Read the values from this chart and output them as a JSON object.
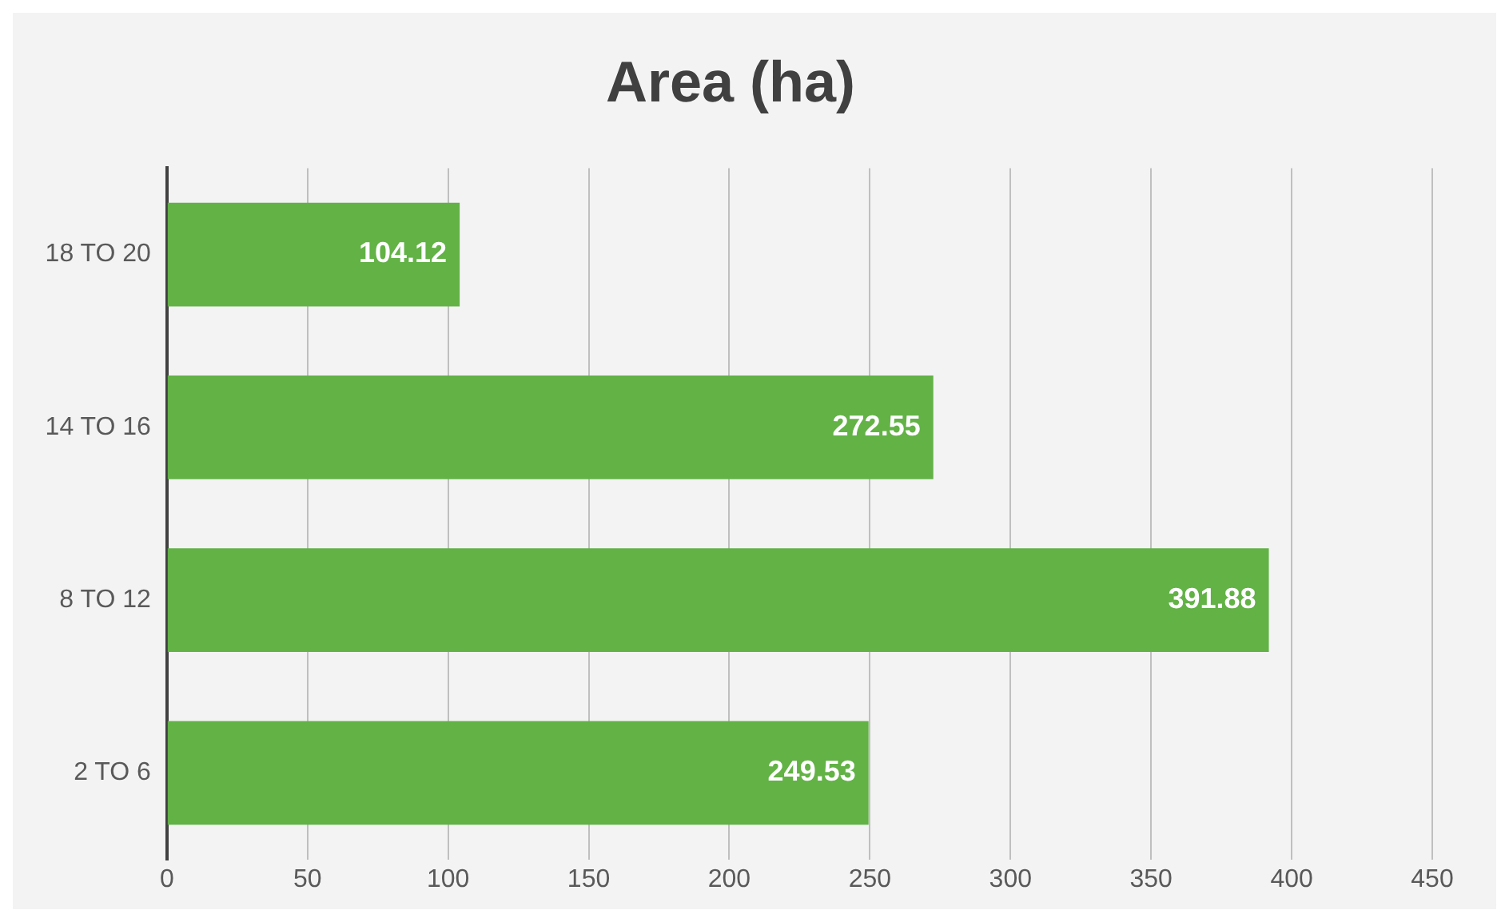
{
  "chart_data": {
    "type": "bar",
    "orientation": "horizontal",
    "title": "Area (ha)",
    "categories": [
      "18 TO 20",
      "14 TO 16",
      "8 TO 12",
      "2 TO 6"
    ],
    "values": [
      104.12,
      272.55,
      391.88,
      249.53
    ],
    "color": "#62b246",
    "xlim": [
      0,
      450
    ],
    "xticks": [
      0,
      50,
      100,
      150,
      200,
      250,
      300,
      350,
      400,
      450
    ],
    "grid": "x",
    "legend": false,
    "data_labels": true
  }
}
